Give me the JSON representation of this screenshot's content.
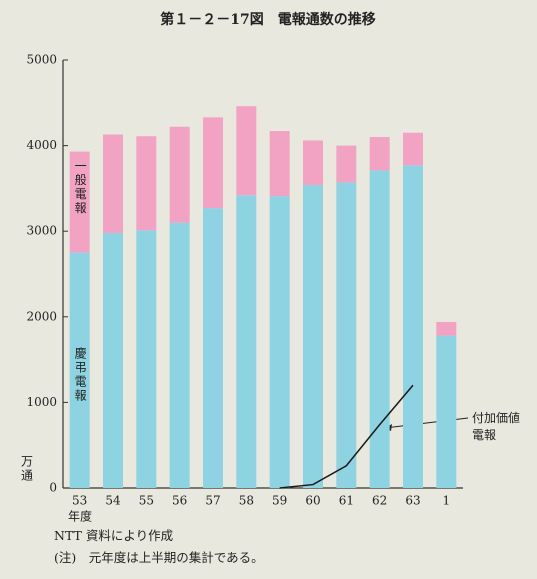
{
  "chart_data": {
    "type": "stacked_bar_line",
    "title": "第１－２－17図　電報通数の推移",
    "y_label": "万通",
    "x_label": "年度",
    "categories": [
      "53",
      "54",
      "55",
      "56",
      "57",
      "58",
      "59",
      "60",
      "61",
      "62",
      "63",
      "1"
    ],
    "series": [
      {
        "name": "慶弔電報",
        "type": "bar",
        "color": "#8ed3e2",
        "values": [
          2750,
          2980,
          3010,
          3100,
          3270,
          3420,
          3410,
          3540,
          3570,
          3710,
          3770,
          1780
        ]
      },
      {
        "name": "一般電報",
        "type": "bar",
        "color": "#f2a3c4",
        "values": [
          1180,
          1150,
          1100,
          1120,
          1060,
          1040,
          760,
          520,
          430,
          390,
          380,
          160
        ]
      },
      {
        "name": "付加価値電報",
        "type": "line",
        "color": "#1a1a1a",
        "values": [
          null,
          null,
          null,
          null,
          null,
          null,
          0,
          40,
          260,
          740,
          1200,
          null
        ]
      }
    ],
    "ylim": [
      0,
      5000
    ],
    "yticks": [
      0,
      1000,
      2000,
      3000,
      4000,
      5000
    ],
    "grid": false,
    "notes": [
      "NTT 資料により作成",
      "(注)　元年度は上半期の集計である。"
    ]
  }
}
